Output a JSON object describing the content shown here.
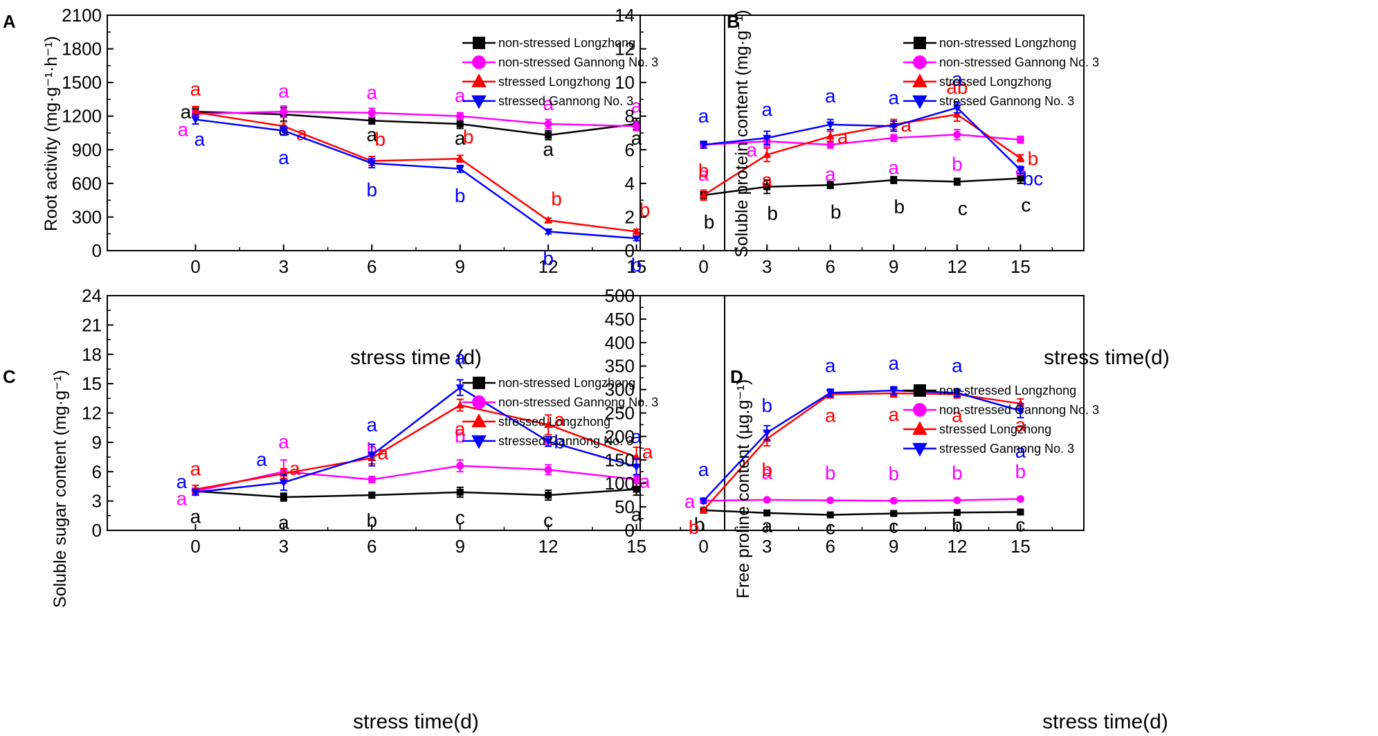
{
  "colors": {
    "non_stressed_longzhong": "#000000",
    "non_stressed_gannong": "#ff00ff",
    "stressed_longzhong": "#ff0000",
    "stressed_gannong": "#0000ff"
  },
  "chart_data": [
    {
      "type": "line",
      "panel_label": "A",
      "title": "",
      "xlabel": "stress time (d)",
      "ylabel": "Root activity (mg·g⁻¹·h⁻¹)",
      "x": [
        0,
        3,
        6,
        9,
        12,
        15
      ],
      "xlim": [
        -3,
        18
      ],
      "ylim": [
        0,
        2100
      ],
      "yticks": [
        0,
        300,
        600,
        900,
        1200,
        1500,
        1800,
        2100
      ],
      "legend_position": "top-right",
      "series": [
        {
          "name": "non-stressed Longzhong",
          "color": "#000000",
          "marker": "square",
          "values": [
            1240,
            1215,
            1160,
            1130,
            1030,
            1130
          ],
          "errors": [
            40,
            60,
            30,
            40,
            40,
            50
          ],
          "letters": [
            "a",
            "a",
            "a",
            "a",
            "a",
            "a"
          ]
        },
        {
          "name": "non-stressed Gannong No. 3",
          "color": "#ff00ff",
          "marker": "circle",
          "values": [
            1220,
            1240,
            1230,
            1200,
            1130,
            1110
          ],
          "errors": [
            30,
            50,
            40,
            30,
            40,
            40
          ],
          "letters": [
            "a",
            "a",
            "a",
            "a",
            "a",
            "a"
          ]
        },
        {
          "name": "stressed Longzhong",
          "color": "#ff0000",
          "marker": "triangle-up",
          "values": [
            1235,
            1110,
            800,
            820,
            270,
            170
          ],
          "errors": [
            50,
            40,
            40,
            30,
            20,
            20
          ],
          "letters": [
            "a",
            "a",
            "b",
            "b",
            "b",
            "b"
          ]
        },
        {
          "name": "stressed Gannong No. 3",
          "color": "#0000ff",
          "marker": "triangle-down",
          "values": [
            1170,
            1070,
            780,
            730,
            170,
            110
          ],
          "errors": [
            40,
            40,
            40,
            30,
            20,
            20
          ],
          "letters": [
            "a",
            "a",
            "b",
            "b",
            "b",
            "b"
          ]
        }
      ]
    },
    {
      "type": "line",
      "panel_label": "B",
      "title": "",
      "xlabel": "stress time(d)",
      "ylabel": "Soluble protein content (mg·g⁻¹)",
      "x": [
        0,
        3,
        6,
        9,
        12,
        15
      ],
      "xlim": [
        -3,
        18
      ],
      "ylim": [
        0,
        14
      ],
      "yticks": [
        0,
        2,
        4,
        6,
        8,
        10,
        12,
        14
      ],
      "legend_position": "top-right",
      "series": [
        {
          "name": "non-stressed Longzhong",
          "color": "#000000",
          "marker": "square",
          "values": [
            3.3,
            3.8,
            3.9,
            4.2,
            4.1,
            4.3
          ],
          "errors": [
            0.2,
            0.4,
            0.2,
            0.2,
            0.2,
            0.3
          ],
          "letters": [
            "b",
            "b",
            "b",
            "b",
            "c",
            "c"
          ]
        },
        {
          "name": "non-stressed Gannong No. 3",
          "color": "#ff00ff",
          "marker": "circle",
          "values": [
            6.3,
            6.5,
            6.3,
            6.7,
            6.9,
            6.6
          ],
          "errors": [
            0.2,
            0.3,
            0.2,
            0.2,
            0.3,
            0.2
          ],
          "letters": [
            "a",
            "a",
            "a",
            "a",
            "b",
            "a"
          ]
        },
        {
          "name": "stressed Longzhong",
          "color": "#ff0000",
          "marker": "triangle-up",
          "values": [
            3.3,
            5.7,
            6.8,
            7.5,
            8.1,
            5.5
          ],
          "errors": [
            0.3,
            0.4,
            0.3,
            0.3,
            0.4,
            0.2
          ],
          "letters": [
            "b",
            "a",
            "a",
            "a",
            "ab",
            "b"
          ]
        },
        {
          "name": "stressed Gannong No. 3",
          "color": "#0000ff",
          "marker": "triangle-down",
          "values": [
            6.3,
            6.7,
            7.5,
            7.4,
            8.5,
            4.8
          ],
          "errors": [
            0.2,
            0.4,
            0.3,
            0.3,
            0.3,
            0.2
          ],
          "letters": [
            "a",
            "a",
            "a",
            "a",
            "a",
            "bc"
          ]
        }
      ]
    },
    {
      "type": "line",
      "panel_label": "C",
      "title": "",
      "xlabel": "stress time(d)",
      "ylabel": "Soluble sugar content (mg·g⁻¹)",
      "x": [
        0,
        3,
        6,
        9,
        12,
        15
      ],
      "xlim": [
        -3,
        18
      ],
      "ylim": [
        0,
        24
      ],
      "yticks": [
        0,
        3,
        6,
        9,
        12,
        15,
        18,
        21,
        24
      ],
      "legend_position": "top-right",
      "series": [
        {
          "name": "non-stressed Longzhong",
          "color": "#000000",
          "marker": "square",
          "values": [
            4.0,
            3.4,
            3.6,
            3.9,
            3.6,
            4.2
          ],
          "errors": [
            0.3,
            0.4,
            0.3,
            0.5,
            0.5,
            0.6
          ],
          "letters": [
            "a",
            "a",
            "b",
            "c",
            "c",
            "a"
          ]
        },
        {
          "name": "non-stressed Gannong No. 3",
          "color": "#ff00ff",
          "marker": "circle",
          "values": [
            4.0,
            6.0,
            5.2,
            6.6,
            6.2,
            5.2
          ],
          "errors": [
            0.3,
            1.2,
            0.3,
            0.6,
            0.5,
            0.4
          ],
          "letters": [
            "a",
            "a",
            "b",
            "b",
            "c",
            "a"
          ]
        },
        {
          "name": "stressed Longzhong",
          "color": "#ff0000",
          "marker": "triangle-up",
          "values": [
            4.2,
            5.8,
            7.4,
            12.8,
            10.8,
            7.5
          ],
          "errors": [
            0.4,
            0.5,
            0.6,
            0.6,
            1.0,
            1.0
          ],
          "letters": [
            "a",
            "a",
            "a",
            "a",
            "a",
            "a"
          ]
        },
        {
          "name": "stressed Gannong No. 3",
          "color": "#0000ff",
          "marker": "triangle-down",
          "values": [
            3.9,
            4.9,
            7.7,
            14.6,
            9.1,
            6.5
          ],
          "errors": [
            0.3,
            0.8,
            1.1,
            0.8,
            0.5,
            0.8
          ],
          "letters": [
            "a",
            "a",
            "a",
            "a",
            "b",
            "a"
          ]
        }
      ]
    },
    {
      "type": "line",
      "panel_label": "D",
      "title": "",
      "xlabel": "stress time(d)",
      "ylabel": "Free proline content (µg.g⁻¹)",
      "x": [
        0,
        3,
        6,
        9,
        12,
        15
      ],
      "xlim": [
        -3,
        18
      ],
      "ylim": [
        0,
        500
      ],
      "yticks": [
        0,
        50,
        100,
        150,
        200,
        250,
        300,
        350,
        400,
        450,
        500
      ],
      "legend_position": "top-right",
      "series": [
        {
          "name": "non-stressed Longzhong",
          "color": "#000000",
          "marker": "square",
          "values": [
            43,
            37,
            33,
            36,
            38,
            39
          ],
          "errors": [
            3,
            6,
            3,
            3,
            3,
            3
          ],
          "letters": [
            "b",
            "a",
            "c",
            "c",
            "b",
            "c"
          ]
        },
        {
          "name": "non-stressed Gannong No. 3",
          "color": "#ff00ff",
          "marker": "circle",
          "values": [
            63,
            65,
            64,
            63,
            64,
            67
          ],
          "errors": [
            3,
            3,
            3,
            3,
            3,
            3
          ],
          "letters": [
            "a",
            "a",
            "b",
            "b",
            "b",
            "b"
          ]
        },
        {
          "name": "stressed Longzhong",
          "color": "#ff0000",
          "marker": "triangle-up",
          "values": [
            43,
            195,
            290,
            292,
            290,
            270
          ],
          "errors": [
            5,
            15,
            8,
            8,
            8,
            10
          ],
          "letters": [
            "b",
            "b",
            "a",
            "a",
            "a",
            "a"
          ]
        },
        {
          "name": "stressed Gannong No. 3",
          "color": "#0000ff",
          "marker": "triangle-down",
          "values": [
            63,
            208,
            293,
            298,
            293,
            255
          ],
          "errors": [
            5,
            15,
            8,
            8,
            8,
            15
          ],
          "letters": [
            "a",
            "b",
            "a",
            "a",
            "a",
            "a"
          ]
        }
      ]
    }
  ]
}
